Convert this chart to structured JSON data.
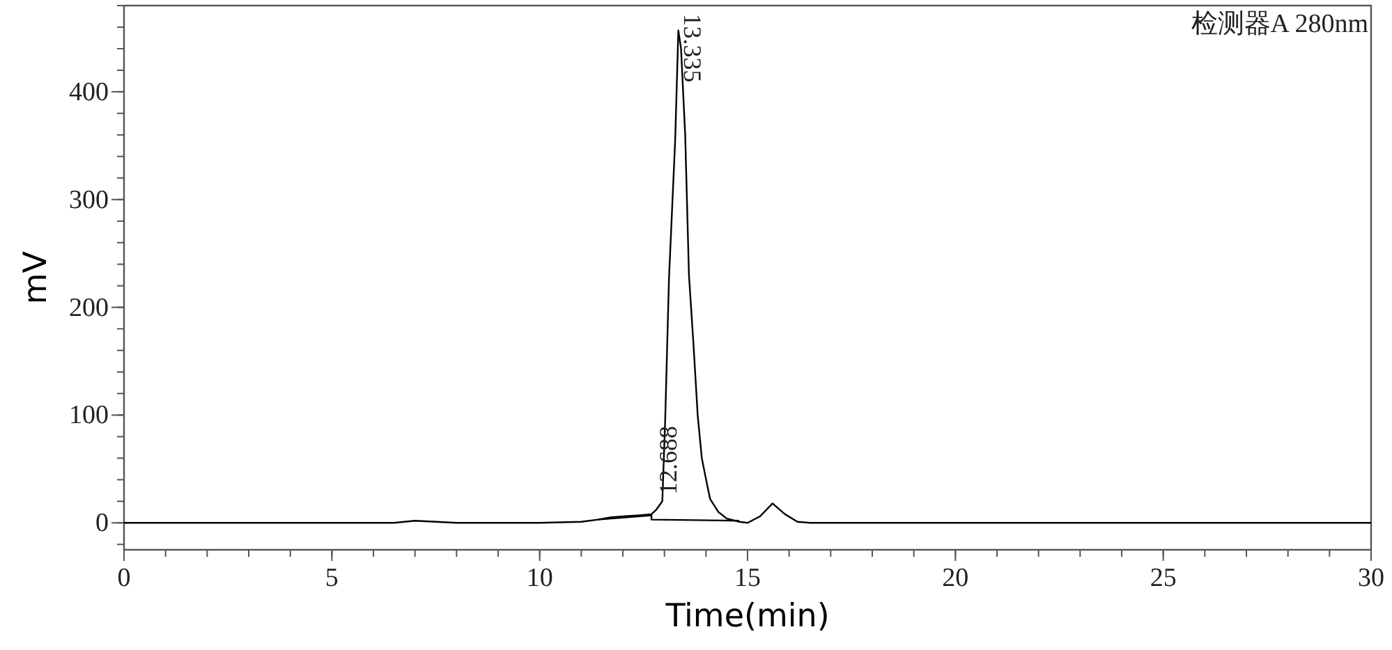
{
  "chart_data": {
    "type": "line",
    "xlabel": "Time(min)",
    "ylabel": "mV",
    "xlim": [
      0,
      30
    ],
    "ylim": [
      -25,
      480
    ],
    "xticks": [
      0,
      5,
      10,
      15,
      20,
      25,
      30
    ],
    "yticks": [
      0,
      100,
      200,
      300,
      400
    ],
    "grid": false,
    "marker": "none",
    "line_style": "solid",
    "annotations": [
      "检测器A 280nm",
      {
        "text": "13.335",
        "x": 13.335,
        "y": 457
      },
      {
        "text": "12.688",
        "x": 12.688,
        "y": 8
      }
    ],
    "series": [
      {
        "color": "#000000",
        "x": [
          0,
          3,
          6.5,
          7.0,
          7.5,
          8,
          10,
          11,
          11.4,
          11.7,
          12,
          12.4,
          12.688,
          12.8,
          12.95,
          13.02,
          13.11,
          13.26,
          13.335,
          13.4,
          13.5,
          13.59,
          13.7,
          13.8,
          13.9,
          14.04,
          14.1,
          14.3,
          14.5,
          14.8,
          15.0,
          15.3,
          15.6,
          15.9,
          16.2,
          16.5,
          20,
          25,
          30
        ],
        "values": [
          0,
          0,
          0,
          2,
          1,
          0,
          0,
          1,
          3,
          5,
          6,
          7,
          8,
          12,
          20,
          97,
          227,
          356,
          457,
          440,
          360,
          230,
          165,
          100,
          60,
          33,
          22,
          10,
          4,
          1,
          0,
          6,
          18,
          8,
          1,
          0,
          0,
          0,
          0
        ]
      },
      {
        "color": "#000000",
        "x": [
          11.4,
          12.688,
          12.688,
          14.8
        ],
        "values": [
          3,
          7,
          3,
          2
        ]
      }
    ]
  }
}
